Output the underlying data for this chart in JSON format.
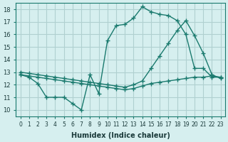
{
  "xlabel": "Humidex (Indice chaleur)",
  "ylabel": "",
  "bg_color": "#d6efef",
  "grid_color": "#b0d0d0",
  "line_color": "#1a7a6e",
  "xlim": [
    -0.5,
    23.5
  ],
  "ylim": [
    9.5,
    18.5
  ],
  "xticks": [
    0,
    1,
    2,
    3,
    4,
    5,
    6,
    7,
    8,
    9,
    10,
    11,
    12,
    13,
    14,
    15,
    16,
    17,
    18,
    19,
    20,
    21,
    22,
    23
  ],
  "yticks": [
    10,
    11,
    12,
    13,
    14,
    15,
    16,
    17,
    18
  ],
  "line1_x": [
    0,
    1,
    2,
    3,
    4,
    5,
    6,
    7,
    8,
    9,
    10,
    11,
    12,
    13,
    14,
    15,
    16,
    17,
    18,
    19,
    20,
    21,
    22,
    23
  ],
  "line1_y": [
    12.8,
    12.6,
    12.1,
    11.0,
    11.0,
    11.0,
    10.5,
    10.0,
    12.8,
    11.3,
    15.5,
    16.7,
    16.8,
    17.3,
    18.2,
    17.8,
    17.6,
    17.5,
    17.1,
    16.0,
    13.3,
    13.3,
    12.6,
    12.6
  ],
  "line2_x": [
    0,
    1,
    2,
    3,
    4,
    5,
    6,
    7,
    8,
    9,
    10,
    11,
    12,
    13,
    14,
    15,
    16,
    17,
    18,
    19,
    20,
    21,
    22,
    23
  ],
  "line2_y": [
    13.0,
    12.9,
    12.8,
    12.7,
    12.6,
    12.5,
    12.4,
    12.3,
    12.2,
    12.1,
    12.0,
    11.9,
    11.8,
    12.0,
    12.3,
    13.3,
    14.3,
    15.3,
    16.3,
    17.1,
    15.9,
    14.5,
    12.8,
    12.5
  ],
  "line3_x": [
    0,
    1,
    2,
    3,
    4,
    5,
    6,
    7,
    8,
    9,
    10,
    11,
    12,
    13,
    14,
    15,
    16,
    17,
    18,
    19,
    20,
    21,
    22,
    23
  ],
  "line3_y": [
    12.8,
    12.7,
    12.6,
    12.5,
    12.4,
    12.3,
    12.2,
    12.1,
    12.0,
    11.9,
    11.8,
    11.7,
    11.6,
    11.7,
    11.9,
    12.1,
    12.2,
    12.3,
    12.4,
    12.5,
    12.6,
    12.6,
    12.7,
    12.6
  ]
}
